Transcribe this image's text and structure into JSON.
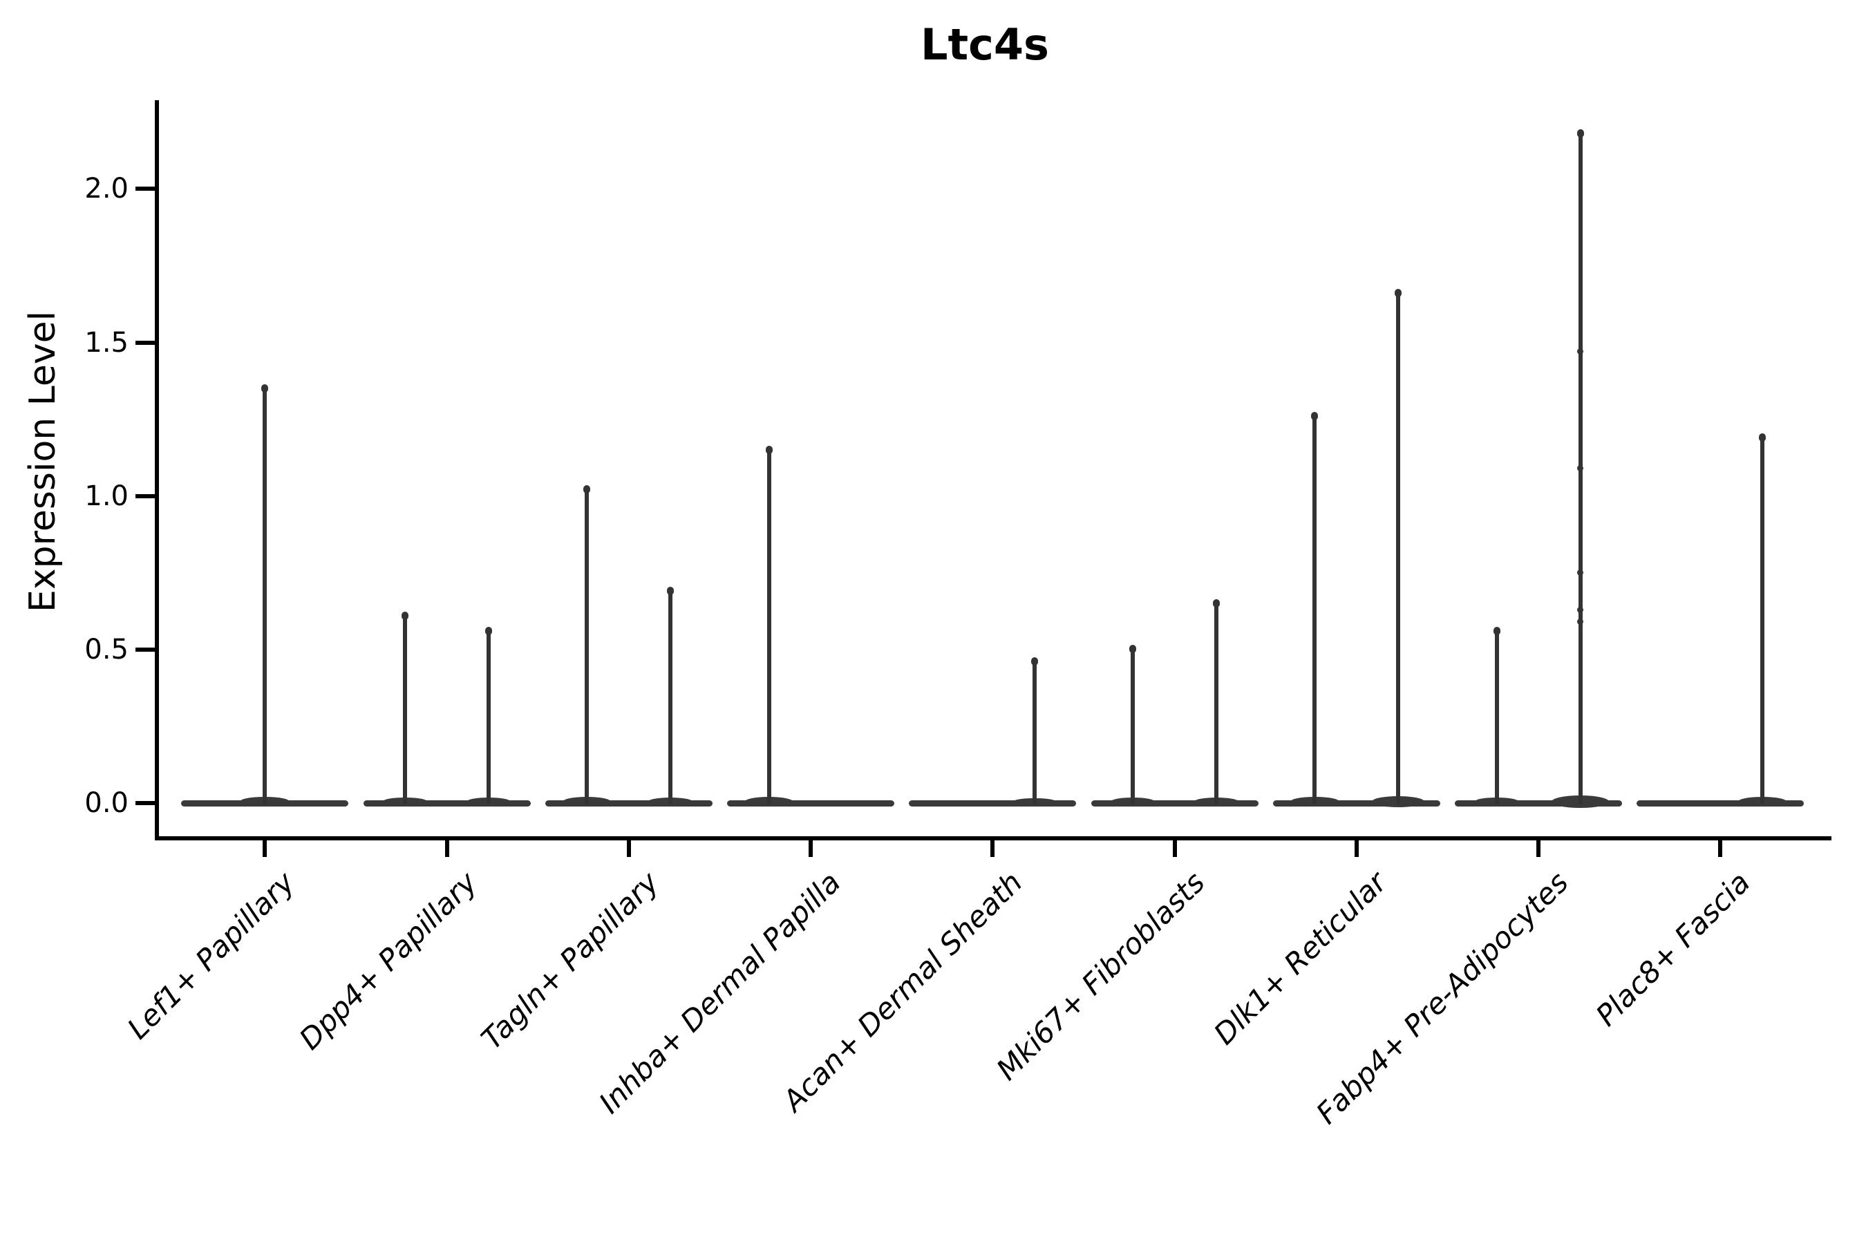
{
  "title": "Ltc4s",
  "axes": {
    "y_label": "Expression Level",
    "y_tick_labels": [
      "0.0",
      "0.5",
      "1.0",
      "1.5",
      "2.0"
    ]
  },
  "chart_data": {
    "type": "violin",
    "title": "Ltc4s",
    "xlabel": "",
    "ylabel": "Expression Level",
    "ylim": [
      -0.11,
      2.29
    ],
    "y_ticks": [
      0.0,
      0.5,
      1.0,
      1.5,
      2.0
    ],
    "grid": false,
    "legend": "none",
    "categories": [
      "Lef1+ Papillary",
      "Dpp4+ Papillary",
      "Tagln+ Papillary",
      "Inhba+ Dermal Papilla",
      "Acan+ Dermal Sheath",
      "Mki67+ Fibroblasts",
      "Dlk1+ Reticular",
      "Fabp4+ Pre-Adipocytes",
      "Plac8+ Fascia"
    ],
    "series": [
      {
        "category": "Lef1+ Papillary",
        "violins": [
          {
            "position": "center",
            "baseline": 0.0,
            "max": 1.36
          }
        ]
      },
      {
        "category": "Dpp4+ Papillary",
        "violins": [
          {
            "position": "left",
            "baseline": 0.0,
            "max": 0.62
          },
          {
            "position": "right",
            "baseline": 0.0,
            "max": 0.57
          }
        ]
      },
      {
        "category": "Tagln+ Papillary",
        "violins": [
          {
            "position": "left",
            "baseline": 0.0,
            "max": 1.03
          },
          {
            "position": "right",
            "baseline": 0.0,
            "max": 0.7
          }
        ]
      },
      {
        "category": "Inhba+ Dermal Papilla",
        "violins": [
          {
            "position": "left",
            "baseline": 0.0,
            "max": 1.16
          }
        ]
      },
      {
        "category": "Acan+ Dermal Sheath",
        "violins": [
          {
            "position": "right",
            "baseline": 0.0,
            "max": 0.47
          }
        ]
      },
      {
        "category": "Mki67+ Fibroblasts",
        "violins": [
          {
            "position": "left",
            "baseline": 0.0,
            "max": 0.51
          },
          {
            "position": "right",
            "baseline": 0.0,
            "max": 0.66
          }
        ]
      },
      {
        "category": "Dlk1+ Reticular",
        "violins": [
          {
            "position": "left",
            "baseline": 0.0,
            "max": 1.27
          },
          {
            "position": "right",
            "baseline": 0.0,
            "max": 1.67
          }
        ]
      },
      {
        "category": "Fabp4+ Pre-Adipocytes",
        "violins": [
          {
            "position": "left",
            "baseline": 0.0,
            "max": 0.57
          },
          {
            "position": "right",
            "baseline": 0.0,
            "max": 2.19,
            "points": [
              1.47,
              1.09,
              0.75,
              0.63,
              0.59
            ]
          }
        ]
      },
      {
        "category": "Plac8+ Fascia",
        "violins": [
          {
            "position": "right",
            "baseline": 0.0,
            "max": 1.2
          }
        ]
      }
    ],
    "colors": {
      "violin": "#333333",
      "axis": "#000000",
      "text": "#000000"
    }
  }
}
